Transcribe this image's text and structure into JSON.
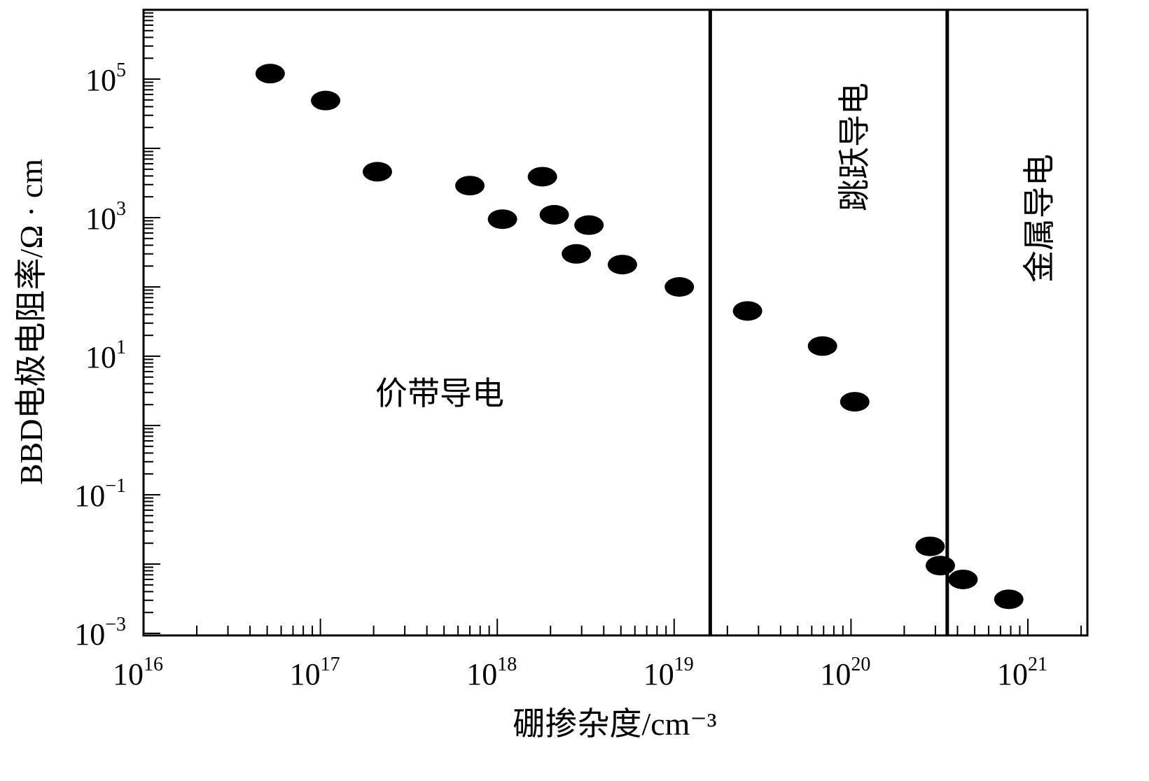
{
  "chart_data": {
    "type": "scatter",
    "xlabel": "硼掺杂度/cm⁻³",
    "ylabel": "BBD电极电阻率/Ω · cm",
    "x_scale": "log",
    "y_scale": "log",
    "xlim": [
      1e+16,
      3.5e+21
    ],
    "ylim": [
      0.001,
      1000000.0
    ],
    "x_ticks": [
      {
        "base": "10",
        "exp": "16",
        "value": 1e+16
      },
      {
        "base": "10",
        "exp": "17",
        "value": 1e+17
      },
      {
        "base": "10",
        "exp": "18",
        "value": 1e+18
      },
      {
        "base": "10",
        "exp": "19",
        "value": 1e+19
      },
      {
        "base": "10",
        "exp": "20",
        "value": 1e+20
      },
      {
        "base": "10",
        "exp": "21",
        "value": 1e+21
      }
    ],
    "y_ticks": [
      {
        "base": "10",
        "exp": "−3",
        "value": 0.001
      },
      {
        "base": "10",
        "exp": "−1",
        "value": 0.1
      },
      {
        "base": "10",
        "exp": "1",
        "value": 10.0
      },
      {
        "base": "10",
        "exp": "3",
        "value": 1000.0
      },
      {
        "base": "10",
        "exp": "5",
        "value": 100000.0
      }
    ],
    "grid": false,
    "marker_color": "#000000",
    "points": [
      {
        "x": 5.2e+16,
        "y": 120000.0
      },
      {
        "x": 1.07e+17,
        "y": 49000.0
      },
      {
        "x": 2.1e+17,
        "y": 4600.0
      },
      {
        "x": 7e+17,
        "y": 2900.0
      },
      {
        "x": 1.07e+18,
        "y": 950.0
      },
      {
        "x": 1.8e+18,
        "y": 3900.0
      },
      {
        "x": 2.1e+18,
        "y": 1100.0
      },
      {
        "x": 3.3e+18,
        "y": 780.0
      },
      {
        "x": 2.8e+18,
        "y": 300.0
      },
      {
        "x": 5.1e+18,
        "y": 210.0
      },
      {
        "x": 1.07e+19,
        "y": 100.0
      },
      {
        "x": 2.6e+19,
        "y": 45
      },
      {
        "x": 6.9e+19,
        "y": 14
      },
      {
        "x": 1.05e+20,
        "y": 2.2
      },
      {
        "x": 2.8e+20,
        "y": 0.018
      },
      {
        "x": 3.2e+20,
        "y": 0.0095
      },
      {
        "x": 4.3e+20,
        "y": 0.006
      },
      {
        "x": 7.8e+20,
        "y": 0.0031
      }
    ],
    "boundaries": [
      1.6e+19,
      3.5e+20
    ],
    "regions": [
      {
        "label": "价带导电",
        "orientation": "horizontal"
      },
      {
        "label": "跳跃导电",
        "orientation": "vertical"
      },
      {
        "label": "金属导电",
        "orientation": "vertical"
      }
    ]
  }
}
